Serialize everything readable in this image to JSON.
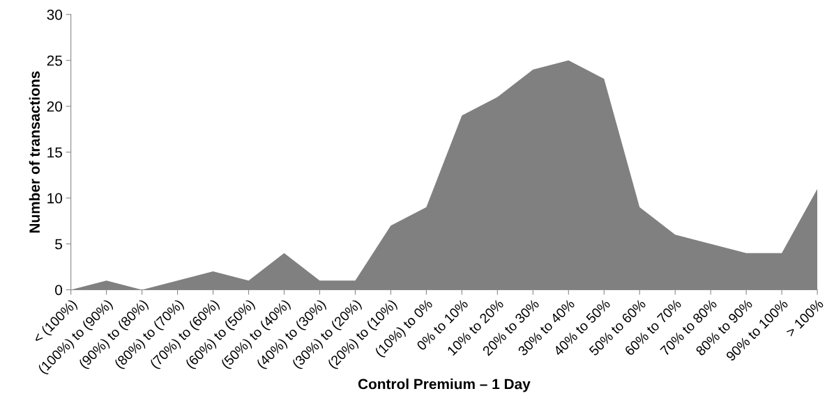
{
  "chart_data": {
    "type": "area",
    "xlabel": "Control Premium – 1 Day",
    "ylabel": "Number of transactions",
    "categories": [
      "< (100%)",
      "(100%) to (90%)",
      "(90%) to (80%)",
      "(80%) to (70%)",
      "(70%) to (60%)",
      "(60%) to (50%)",
      "(50%) to (40%)",
      "(40%) to (30%)",
      "(30%) to (20%)",
      "(20%) to (10%)",
      "(10%) to 0%",
      "0% to 10%",
      "10% to 20%",
      "20% to 30%",
      "30% to 40%",
      "40% to 50%",
      "50% to 60%",
      "60% to 70%",
      "70% to 80%",
      "80% to 90%",
      "90% to 100%",
      "> 100%"
    ],
    "values": [
      0,
      1,
      0,
      1,
      2,
      1,
      4,
      1,
      1,
      7,
      9,
      19,
      21,
      24,
      25,
      23,
      9,
      6,
      5,
      4,
      4,
      11
    ],
    "color": "#808080",
    "ylim": [
      0,
      30
    ],
    "yticks": [
      0,
      5,
      10,
      15,
      20,
      25,
      30
    ],
    "grid": false,
    "legend": false
  }
}
